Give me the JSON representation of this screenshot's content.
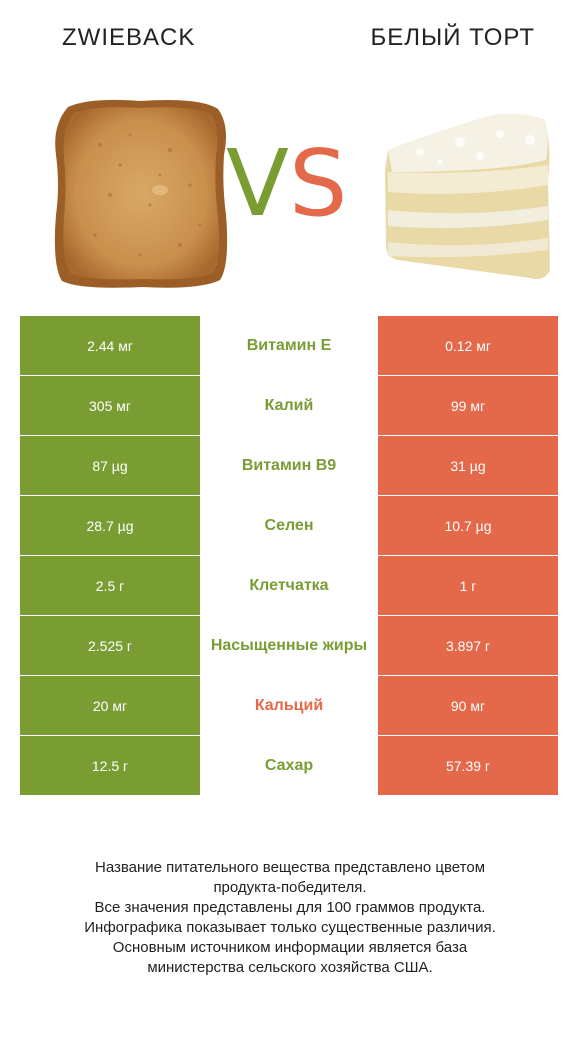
{
  "header": {
    "left_title": "ZWIEBACK",
    "right_title": "БЕЛЫЙ ТОРТ",
    "vs_v": "V",
    "vs_s": "S"
  },
  "colors": {
    "left_winner": "#7a9d33",
    "right_winner": "#e3694a"
  },
  "rows": [
    {
      "left": "2.44 мг",
      "nutrient": "Витамин E",
      "right": "0.12 мг",
      "winner": "left"
    },
    {
      "left": "305 мг",
      "nutrient": "Калий",
      "right": "99 мг",
      "winner": "left"
    },
    {
      "left": "87 µg",
      "nutrient": "Витамин B9",
      "right": "31 µg",
      "winner": "left"
    },
    {
      "left": "28.7 µg",
      "nutrient": "Селен",
      "right": "10.7 µg",
      "winner": "left"
    },
    {
      "left": "2.5 г",
      "nutrient": "Клетчатка",
      "right": "1 г",
      "winner": "left"
    },
    {
      "left": "2.525 г",
      "nutrient": "Насыщенные жиры",
      "right": "3.897 г",
      "winner": "left"
    },
    {
      "left": "20 мг",
      "nutrient": "Кальций",
      "right": "90 мг",
      "winner": "right"
    },
    {
      "left": "12.5 г",
      "nutrient": "Сахар",
      "right": "57.39 г",
      "winner": "left"
    }
  ],
  "footnote": {
    "line1": "Название питательного вещества представлено цветом",
    "line2": "продукта-победителя.",
    "line3": "Все значения представлены для 100 граммов продукта.",
    "line4": "Инфографика показывает только существенные различия.",
    "line5": "Основным источником информации является база",
    "line6": "министерства сельского хозяйства США."
  }
}
